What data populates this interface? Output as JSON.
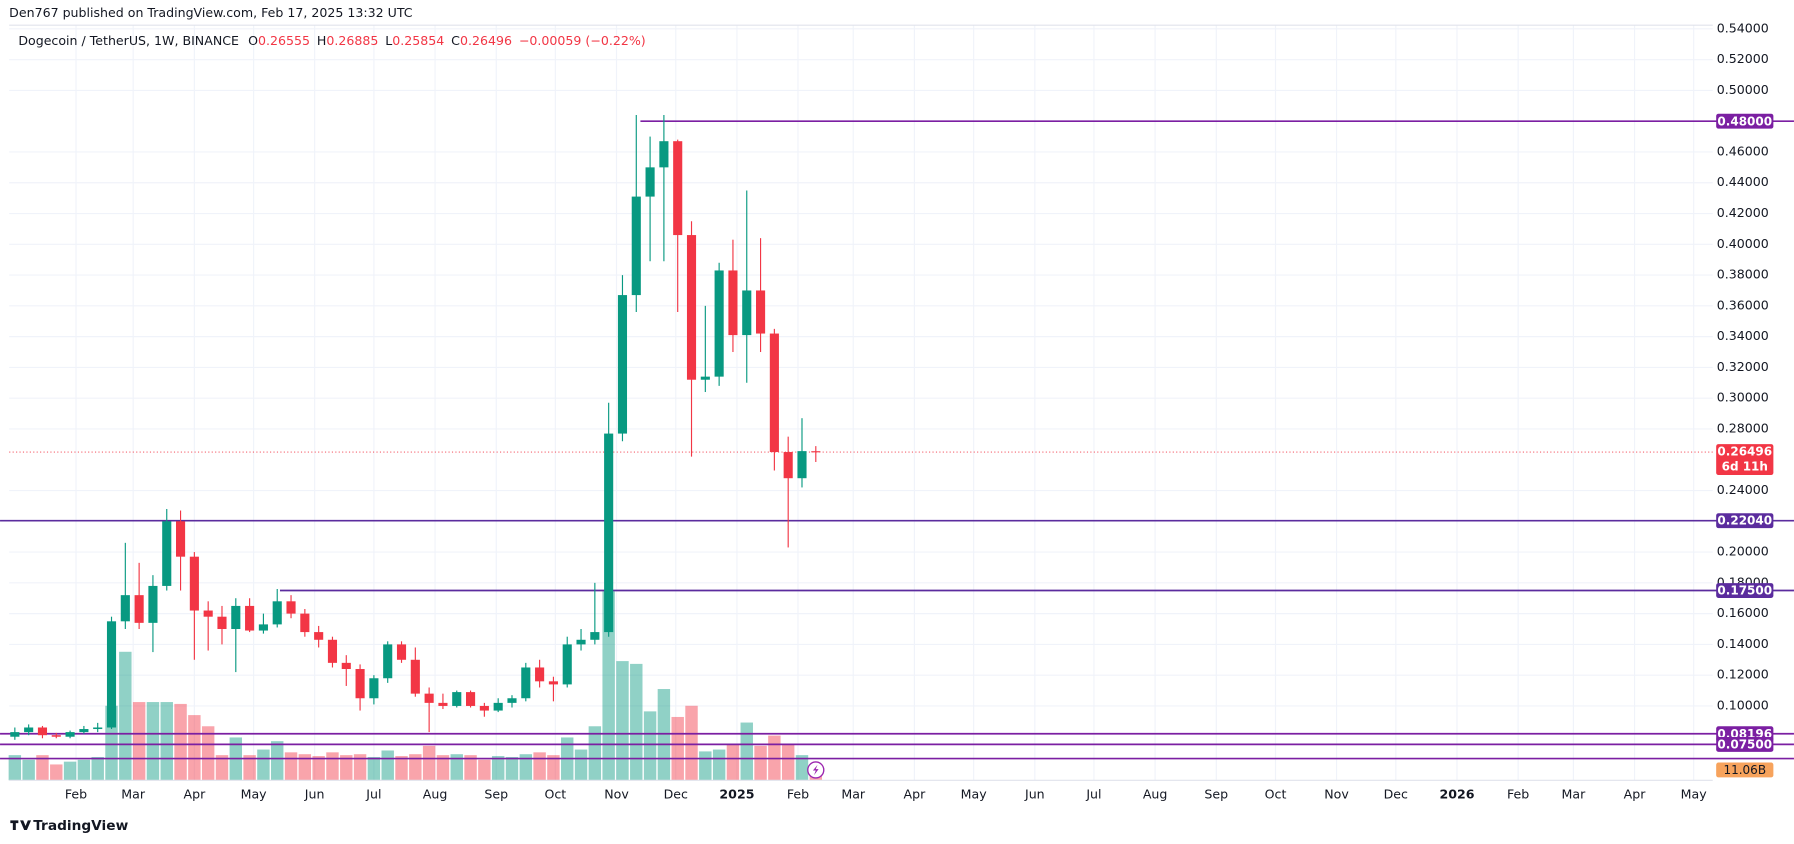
{
  "chart_data": {
    "type": "candlestick",
    "publisher": "Den767 published on TradingView.com, Feb 17, 2025 13:32 UTC",
    "title": "Dogecoin / TetherUS, 1W, BINANCE",
    "ohlc_labels": [
      "O",
      "H",
      "L",
      "C"
    ],
    "change": "−0.00059 (−0.22%)",
    "up_color": "#089981",
    "down_color": "#f23645",
    "open": [
      0.08,
      0.083,
      0.086,
      0.081,
      0.08,
      0.083,
      0.085,
      0.086,
      0.155,
      0.172,
      0.154,
      0.178,
      0.22,
      0.197,
      0.162,
      0.158,
      0.15,
      0.165,
      0.149,
      0.153,
      0.168,
      0.16,
      0.148,
      0.143,
      0.128,
      0.124,
      0.105,
      0.118,
      0.14,
      0.13,
      0.108,
      0.102,
      0.1,
      0.109,
      0.1,
      0.097,
      0.102,
      0.105,
      0.125,
      0.116,
      0.114,
      0.14,
      0.143,
      0.148,
      0.277,
      0.367,
      0.431,
      0.45,
      0.467,
      0.406,
      0.312,
      0.314,
      0.383,
      0.341,
      0.37,
      0.342,
      0.265,
      0.248,
      0.26555
    ],
    "high": [
      0.086,
      0.088,
      0.087,
      0.0825,
      0.084,
      0.087,
      0.089,
      0.158,
      0.206,
      0.193,
      0.185,
      0.228,
      0.227,
      0.2,
      0.168,
      0.165,
      0.17,
      0.17,
      0.16,
      0.176,
      0.172,
      0.163,
      0.152,
      0.145,
      0.133,
      0.127,
      0.12,
      0.142,
      0.142,
      0.138,
      0.112,
      0.108,
      0.11,
      0.11,
      0.102,
      0.105,
      0.107,
      0.128,
      0.13,
      0.119,
      0.145,
      0.15,
      0.18,
      0.297,
      0.38,
      0.484,
      0.47,
      0.484,
      0.468,
      0.415,
      0.36,
      0.388,
      0.403,
      0.435,
      0.404,
      0.345,
      0.275,
      0.287,
      0.26885
    ],
    "low": [
      0.078,
      0.081,
      0.079,
      0.079,
      0.079,
      0.082,
      0.083,
      0.085,
      0.15,
      0.15,
      0.135,
      0.175,
      0.175,
      0.13,
      0.136,
      0.14,
      0.122,
      0.148,
      0.147,
      0.151,
      0.157,
      0.145,
      0.138,
      0.125,
      0.113,
      0.097,
      0.101,
      0.115,
      0.128,
      0.106,
      0.083,
      0.098,
      0.099,
      0.099,
      0.093,
      0.096,
      0.099,
      0.103,
      0.112,
      0.103,
      0.112,
      0.136,
      0.14,
      0.145,
      0.272,
      0.356,
      0.389,
      0.389,
      0.356,
      0.262,
      0.304,
      0.308,
      0.33,
      0.31,
      0.33,
      0.253,
      0.203,
      0.242,
      0.25854
    ],
    "close": [
      0.083,
      0.086,
      0.081,
      0.08,
      0.083,
      0.085,
      0.086,
      0.155,
      0.172,
      0.154,
      0.178,
      0.22,
      0.197,
      0.162,
      0.158,
      0.15,
      0.165,
      0.149,
      0.153,
      0.168,
      0.16,
      0.148,
      0.143,
      0.128,
      0.124,
      0.105,
      0.118,
      0.14,
      0.13,
      0.108,
      0.102,
      0.1,
      0.109,
      0.1,
      0.097,
      0.102,
      0.105,
      0.125,
      0.116,
      0.114,
      0.14,
      0.143,
      0.148,
      0.277,
      0.367,
      0.431,
      0.45,
      0.467,
      0.406,
      0.312,
      0.314,
      0.383,
      0.341,
      0.37,
      0.342,
      0.265,
      0.248,
      0.2656,
      0.26496
    ],
    "volume": {
      "values": [
        27,
        22,
        27,
        17,
        20,
        22,
        25,
        80,
        138,
        84,
        84,
        84,
        82,
        70,
        58,
        27,
        46,
        27,
        33,
        42,
        30,
        28,
        26,
        30,
        27,
        28,
        25,
        32,
        26,
        28,
        37,
        27,
        28,
        27,
        22,
        26,
        25,
        28,
        30,
        27,
        46,
        33,
        58,
        203,
        128,
        125,
        74,
        98,
        68,
        80,
        31,
        33,
        39,
        62,
        37,
        48,
        39,
        27,
        11.06
      ],
      "last_label": "11.06B"
    },
    "y2lim": [
      0,
      811
    ],
    "countdown": "6d 11h",
    "levels": [
      {
        "value": 0.48,
        "label": "0.48000",
        "start": 45.3,
        "color": "#7b1fa2"
      },
      {
        "value": 0.2204,
        "label": "0.22040",
        "color": "#5b2c9e"
      },
      {
        "value": 0.175,
        "label": "0.17500",
        "start": 19.2,
        "color": "#5b2c9e"
      },
      {
        "value": 0.08196,
        "label": "0.08196",
        "color": "#7b1fa2"
      },
      {
        "value": 0.075,
        "label": "0.07500",
        "color": "#7b1fa2"
      },
      {
        "value": 0.0658,
        "color": "#7b1fa2"
      }
    ],
    "xlim": [
      -0.41,
      122.95
    ],
    "xticks": [
      {
        "value": 4.43,
        "label": "Feb"
      },
      {
        "value": 8.57,
        "label": "Mar"
      },
      {
        "value": 13,
        "label": "Apr"
      },
      {
        "value": 17.29,
        "label": "May"
      },
      {
        "value": 21.71,
        "label": "Jun"
      },
      {
        "value": 26,
        "label": "Jul"
      },
      {
        "value": 30.43,
        "label": "Aug"
      },
      {
        "value": 34.86,
        "label": "Sep"
      },
      {
        "value": 39.14,
        "label": "Oct"
      },
      {
        "value": 43.57,
        "label": "Nov"
      },
      {
        "value": 47.86,
        "label": "Dec"
      },
      {
        "value": 52.29,
        "label": "2025"
      },
      {
        "value": 56.71,
        "label": "Feb"
      },
      {
        "value": 60.71,
        "label": "Mar"
      },
      {
        "value": 65.14,
        "label": "Apr"
      },
      {
        "value": 69.43,
        "label": "May"
      },
      {
        "value": 73.86,
        "label": "Jun"
      },
      {
        "value": 78.14,
        "label": "Jul"
      },
      {
        "value": 82.57,
        "label": "Aug"
      },
      {
        "value": 87,
        "label": "Sep"
      },
      {
        "value": 91.29,
        "label": "Oct"
      },
      {
        "value": 95.71,
        "label": "Nov"
      },
      {
        "value": 100,
        "label": "Dec"
      },
      {
        "value": 104.43,
        "label": "2026"
      },
      {
        "value": 108.86,
        "label": "Feb"
      },
      {
        "value": 112.86,
        "label": "Mar"
      },
      {
        "value": 117.29,
        "label": "Apr"
      },
      {
        "value": 121.57,
        "label": "May"
      }
    ],
    "ylim": [
      0.0517,
      0.5424
    ],
    "yticks": [
      {
        "value": 0.1,
        "label": "0.10000"
      },
      {
        "value": 0.12,
        "label": "0.12000"
      },
      {
        "value": 0.14,
        "label": "0.14000"
      },
      {
        "value": 0.16,
        "label": "0.16000"
      },
      {
        "value": 0.18,
        "label": "0.18000"
      },
      {
        "value": 0.2,
        "label": "0.20000"
      },
      {
        "value": 0.24,
        "label": "0.24000"
      },
      {
        "value": 0.28,
        "label": "0.28000"
      },
      {
        "value": 0.3,
        "label": "0.30000"
      },
      {
        "value": 0.32,
        "label": "0.32000"
      },
      {
        "value": 0.34,
        "label": "0.34000"
      },
      {
        "value": 0.36,
        "label": "0.36000"
      },
      {
        "value": 0.38,
        "label": "0.38000"
      },
      {
        "value": 0.4,
        "label": "0.40000"
      },
      {
        "value": 0.42,
        "label": "0.42000"
      },
      {
        "value": 0.44,
        "label": "0.44000"
      },
      {
        "value": 0.46,
        "label": "0.46000"
      },
      {
        "value": 0.5,
        "label": "0.50000"
      },
      {
        "value": 0.52,
        "label": "0.52000"
      },
      {
        "value": 0.54,
        "label": "0.54000"
      }
    ],
    "grid": true,
    "footer": "TradingView"
  }
}
